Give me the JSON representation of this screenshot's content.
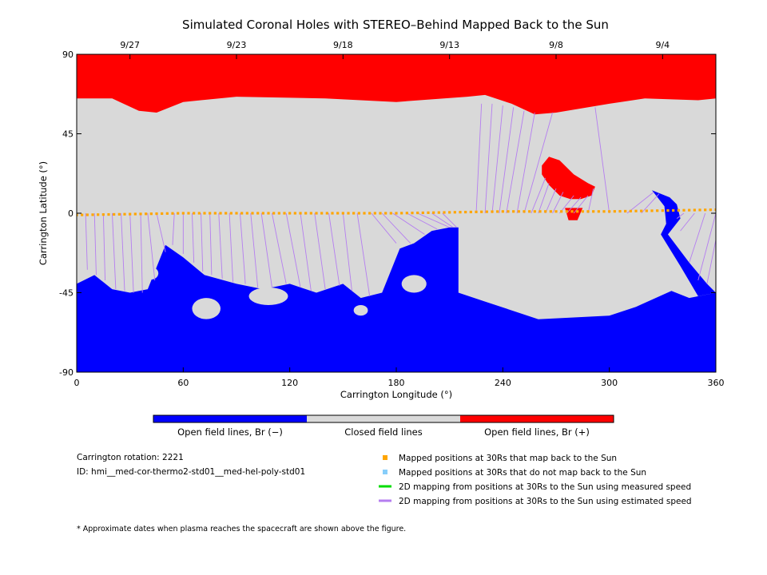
{
  "chart_data": {
    "type": "heatmap",
    "title": "Simulated Coronal Holes with STEREO–Behind Mapped Back to the Sun",
    "xlabel": "Carrington Longitude (°)",
    "ylabel": "Carrington Latitude (°)",
    "xlim": [
      0,
      360
    ],
    "ylim": [
      -90,
      90
    ],
    "x_ticks": [
      0,
      60,
      120,
      180,
      240,
      300,
      360
    ],
    "y_ticks": [
      90,
      45,
      0,
      -45,
      -90
    ],
    "top_axis": {
      "labels": [
        {
          "label": "9/27",
          "longitude": 30
        },
        {
          "label": "9/23",
          "longitude": 90
        },
        {
          "label": "9/18",
          "longitude": 150
        },
        {
          "label": "9/13",
          "longitude": 210
        },
        {
          "label": "9/8",
          "longitude": 270
        },
        {
          "label": "9/4",
          "longitude": 330
        }
      ]
    },
    "colorbar": {
      "segments": [
        {
          "label": "Open field lines, Br (−)",
          "color": "#0000ff"
        },
        {
          "label": "Closed field lines",
          "color": "#d9d9d9"
        },
        {
          "label": "Open field lines, Br (+)",
          "color": "#ff0000"
        }
      ]
    },
    "north_positive_boundary": [
      [
        0,
        65
      ],
      [
        20,
        65
      ],
      [
        35,
        58
      ],
      [
        45,
        57
      ],
      [
        60,
        63
      ],
      [
        90,
        66
      ],
      [
        140,
        65
      ],
      [
        180,
        63
      ],
      [
        220,
        66
      ],
      [
        230,
        67
      ],
      [
        245,
        62
      ],
      [
        258,
        56
      ],
      [
        270,
        57
      ],
      [
        300,
        62
      ],
      [
        320,
        65
      ],
      [
        350,
        64
      ],
      [
        360,
        65
      ]
    ],
    "south_negative_boundary": [
      [
        0,
        -40
      ],
      [
        10,
        -35
      ],
      [
        20,
        -43
      ],
      [
        30,
        -45
      ],
      [
        40,
        -43
      ],
      [
        50,
        -18
      ],
      [
        60,
        -25
      ],
      [
        72,
        -35
      ],
      [
        90,
        -40
      ],
      [
        105,
        -43
      ],
      [
        120,
        -40
      ],
      [
        135,
        -45
      ],
      [
        150,
        -40
      ],
      [
        160,
        -48
      ],
      [
        172,
        -45
      ],
      [
        176,
        -35
      ],
      [
        182,
        -20
      ],
      [
        190,
        -17
      ],
      [
        200,
        -10
      ],
      [
        210,
        -8
      ],
      [
        215,
        -8
      ],
      [
        215,
        -45
      ],
      [
        230,
        -50
      ],
      [
        260,
        -60
      ],
      [
        300,
        -58
      ],
      [
        315,
        -53
      ],
      [
        335,
        -44
      ],
      [
        345,
        -48
      ],
      [
        360,
        -45
      ]
    ],
    "positive_patch_north": [
      [
        262,
        27
      ],
      [
        266,
        32
      ],
      [
        272,
        30
      ],
      [
        280,
        22
      ],
      [
        288,
        17
      ],
      [
        292,
        15
      ],
      [
        290,
        10
      ],
      [
        284,
        8
      ],
      [
        278,
        8
      ],
      [
        272,
        10
      ],
      [
        266,
        16
      ],
      [
        262,
        22
      ]
    ],
    "positive_patch_low": [
      [
        275,
        3
      ],
      [
        277,
        -4
      ],
      [
        282,
        -4
      ],
      [
        285,
        3
      ]
    ],
    "negative_patch_east": [
      [
        324,
        13
      ],
      [
        334,
        9
      ],
      [
        338,
        5
      ],
      [
        340,
        -3
      ],
      [
        333,
        -12
      ],
      [
        345,
        -28
      ],
      [
        355,
        -40
      ],
      [
        360,
        -45
      ],
      [
        350,
        -47
      ],
      [
        340,
        -30
      ],
      [
        329,
        -12
      ],
      [
        332,
        -6
      ],
      [
        331,
        4
      ]
    ],
    "gray_islands": [
      [
        42,
        -34,
        4,
        3.5
      ],
      [
        73,
        -54,
        8,
        6
      ],
      [
        108,
        -47,
        11,
        5
      ],
      [
        160,
        -55,
        4,
        3
      ],
      [
        190,
        -40,
        7,
        5
      ],
      [
        350,
        -33,
        10,
        12
      ]
    ],
    "mapped_positions": {
      "latitude_profile": [
        [
          0,
          -1
        ],
        [
          60,
          0
        ],
        [
          120,
          0
        ],
        [
          180,
          0
        ],
        [
          240,
          1
        ],
        [
          300,
          1
        ],
        [
          360,
          2
        ]
      ],
      "longitude_step": 3
    },
    "field_lines": {
      "color": "#b57ef0",
      "south_group": [
        {
          "from": [
            0,
            0
          ],
          "to": [
            0,
            -15
          ]
        },
        {
          "from": [
            5,
            0
          ],
          "to": [
            6,
            -32
          ]
        },
        {
          "from": [
            10,
            0
          ],
          "to": [
            11,
            -35
          ]
        },
        {
          "from": [
            15,
            0
          ],
          "to": [
            16,
            -38
          ]
        },
        {
          "from": [
            20,
            0
          ],
          "to": [
            22,
            -43
          ]
        },
        {
          "from": [
            25,
            0
          ],
          "to": [
            27,
            -44
          ]
        },
        {
          "from": [
            30,
            0
          ],
          "to": [
            32,
            -45
          ]
        },
        {
          "from": [
            36,
            0
          ],
          "to": [
            37,
            -45
          ]
        },
        {
          "from": [
            40,
            0
          ],
          "to": [
            44,
            -38
          ]
        },
        {
          "from": [
            45,
            0
          ],
          "to": [
            50,
            -22
          ]
        },
        {
          "from": [
            55,
            0
          ],
          "to": [
            54,
            -18
          ]
        },
        {
          "from": [
            60,
            0
          ],
          "to": [
            60,
            -23
          ]
        },
        {
          "from": [
            65,
            0
          ],
          "to": [
            66,
            -28
          ]
        },
        {
          "from": [
            70,
            0
          ],
          "to": [
            71,
            -33
          ]
        },
        {
          "from": [
            75,
            0
          ],
          "to": [
            76,
            -35
          ]
        },
        {
          "from": [
            80,
            0
          ],
          "to": [
            82,
            -37
          ]
        },
        {
          "from": [
            86,
            0
          ],
          "to": [
            88,
            -39
          ]
        },
        {
          "from": [
            92,
            0
          ],
          "to": [
            95,
            -40
          ]
        },
        {
          "from": [
            98,
            0
          ],
          "to": [
            102,
            -42
          ]
        },
        {
          "from": [
            104,
            0
          ],
          "to": [
            110,
            -42
          ]
        },
        {
          "from": [
            110,
            0
          ],
          "to": [
            118,
            -40
          ]
        },
        {
          "from": [
            118,
            0
          ],
          "to": [
            126,
            -42
          ]
        },
        {
          "from": [
            126,
            0
          ],
          "to": [
            132,
            -44
          ]
        },
        {
          "from": [
            134,
            0
          ],
          "to": [
            140,
            -43
          ]
        },
        {
          "from": [
            142,
            0
          ],
          "to": [
            148,
            -41
          ]
        },
        {
          "from": [
            150,
            0
          ],
          "to": [
            155,
            -44
          ]
        },
        {
          "from": [
            158,
            0
          ],
          "to": [
            165,
            -47
          ]
        },
        {
          "from": [
            166,
            0
          ],
          "to": [
            180,
            -17
          ]
        },
        {
          "from": [
            172,
            0
          ],
          "to": [
            188,
            -17
          ]
        },
        {
          "from": [
            178,
            0
          ],
          "to": [
            196,
            -12
          ]
        },
        {
          "from": [
            186,
            0
          ],
          "to": [
            203,
            -9
          ]
        },
        {
          "from": [
            192,
            0
          ],
          "to": [
            210,
            -8
          ]
        },
        {
          "from": [
            200,
            0
          ],
          "to": [
            212,
            -8
          ]
        },
        {
          "from": [
            206,
            0
          ],
          "to": [
            214,
            -8
          ]
        }
      ],
      "north_group": [
        {
          "from": [
            225,
            0
          ],
          "to": [
            228,
            62
          ]
        },
        {
          "from": [
            230,
            0
          ],
          "to": [
            234,
            62
          ]
        },
        {
          "from": [
            234,
            0
          ],
          "to": [
            240,
            61
          ]
        },
        {
          "from": [
            238,
            0
          ],
          "to": [
            246,
            60
          ]
        },
        {
          "from": [
            242,
            0
          ],
          "to": [
            252,
            58
          ]
        },
        {
          "from": [
            248,
            0
          ],
          "to": [
            258,
            57
          ]
        },
        {
          "from": [
            252,
            0
          ],
          "to": [
            268,
            57
          ]
        },
        {
          "from": [
            256,
            0
          ],
          "to": [
            264,
            20
          ]
        },
        {
          "from": [
            260,
            0
          ],
          "to": [
            266,
            17
          ]
        },
        {
          "from": [
            264,
            0
          ],
          "to": [
            270,
            14
          ]
        },
        {
          "from": [
            268,
            0
          ],
          "to": [
            274,
            12
          ]
        },
        {
          "from": [
            272,
            0
          ],
          "to": [
            280,
            10
          ]
        },
        {
          "from": [
            276,
            0
          ],
          "to": [
            284,
            9
          ]
        },
        {
          "from": [
            280,
            0
          ],
          "to": [
            288,
            10
          ]
        },
        {
          "from": [
            288,
            0
          ],
          "to": [
            291,
            14
          ]
        },
        {
          "from": [
            300,
            0
          ],
          "to": [
            292,
            60
          ]
        },
        {
          "from": [
            310,
            0
          ],
          "to": [
            325,
            12
          ]
        },
        {
          "from": [
            318,
            0
          ],
          "to": [
            328,
            11
          ]
        }
      ],
      "east_group": [
        {
          "from": [
            342,
            0
          ],
          "to": [
            338,
            -3
          ]
        },
        {
          "from": [
            348,
            0
          ],
          "to": [
            340,
            -10
          ]
        },
        {
          "from": [
            354,
            0
          ],
          "to": [
            345,
            -28
          ]
        },
        {
          "from": [
            360,
            0
          ],
          "to": [
            350,
            -38
          ]
        },
        {
          "from": [
            360,
            -15
          ],
          "to": [
            355,
            -40
          ]
        }
      ]
    },
    "legend": [
      {
        "label": "Mapped positions at 30Rs that map back to the Sun",
        "color": "#ffa500",
        "marker": "square"
      },
      {
        "label": "Mapped positions at 30Rs that do not map back to the Sun",
        "color": "#87cefa",
        "marker": "square"
      },
      {
        "label": "2D mapping from positions at 30Rs to the Sun using measured speed",
        "color": "#00dd00",
        "marker": "line"
      },
      {
        "label": "2D mapping from positions at 30Rs to the Sun using estimated speed",
        "color": "#b57ef0",
        "marker": "line"
      }
    ],
    "info": {
      "rotation": "Carrington rotation: 2221",
      "id": "ID: hmi__med-cor-thermo2-std01__med-hel-poly-std01"
    },
    "footnote": "* Approximate dates when plasma reaches the spacecraft are shown above the figure."
  }
}
